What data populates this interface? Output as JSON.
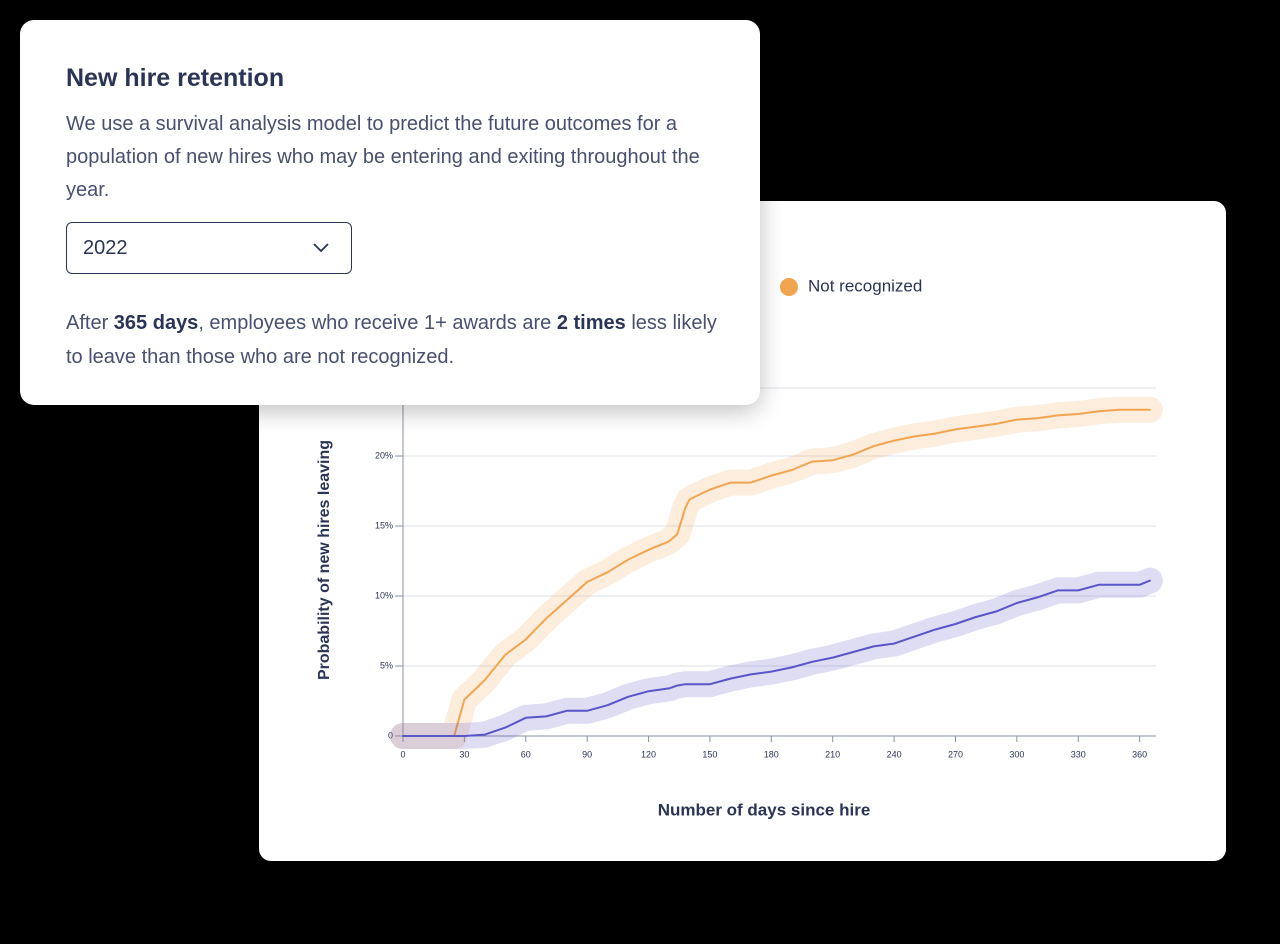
{
  "card": {
    "title": "New hire retention",
    "description": "We use a survival analysis model to predict the future outcomes for a population of new hires who may be entering and exiting throughout the year.",
    "dropdown": "2022",
    "summary": [
      "After ",
      "365 days",
      ", employees who receive 1+ awards are ",
      "2 times",
      " less likely to leave than those who are not recognized."
    ]
  },
  "chart_data": {
    "type": "line",
    "x_label": "Number of days since hire",
    "y_label": "Probability of new hires leaving",
    "x": [
      0,
      10,
      20,
      25,
      30,
      40,
      50,
      60,
      70,
      80,
      90,
      100,
      110,
      120,
      130,
      134,
      138,
      140,
      150,
      160,
      170,
      180,
      190,
      200,
      210,
      220,
      230,
      240,
      250,
      260,
      270,
      280,
      290,
      300,
      310,
      320,
      330,
      340,
      350,
      360,
      365
    ],
    "series": [
      {
        "name": "Not recognized",
        "color": "#f2a550",
        "values": [
          0,
          0,
          0,
          0,
          2.6,
          4.0,
          5.8,
          6.9,
          8.4,
          9.7,
          11.0,
          11.7,
          12.6,
          13.3,
          13.9,
          14.4,
          16.3,
          16.9,
          17.6,
          18.1,
          18.1,
          18.6,
          19.0,
          19.6,
          19.7,
          20.1,
          20.7,
          21.1,
          21.4,
          21.6,
          21.9,
          22.1,
          22.3,
          22.6,
          22.7,
          22.9,
          23.0,
          23.2,
          23.3,
          23.3,
          23.3
        ]
      },
      {
        "color": "#5a55c8",
        "values": [
          0,
          0,
          0,
          0,
          0,
          0.1,
          0.6,
          1.3,
          1.4,
          1.8,
          1.8,
          2.2,
          2.8,
          3.2,
          3.4,
          3.6,
          3.7,
          3.7,
          3.7,
          4.1,
          4.4,
          4.6,
          4.9,
          5.3,
          5.6,
          6.0,
          6.4,
          6.6,
          7.1,
          7.6,
          8.0,
          8.5,
          8.9,
          9.5,
          9.9,
          10.4,
          10.4,
          10.8,
          10.8,
          10.8,
          11.1
        ]
      }
    ],
    "xlim": [
      0,
      368
    ],
    "ylim": [
      0,
      25
    ],
    "xticks": [
      0,
      30,
      60,
      90,
      120,
      150,
      180,
      210,
      240,
      270,
      300,
      330,
      360
    ],
    "yticks": [
      0,
      {
        "value": 5,
        "label": "5%"
      },
      {
        "value": 10,
        "label": "10%"
      },
      {
        "value": 15,
        "label": "15%"
      },
      {
        "value": 20,
        "label": "20%"
      }
    ],
    "grid": true
  }
}
